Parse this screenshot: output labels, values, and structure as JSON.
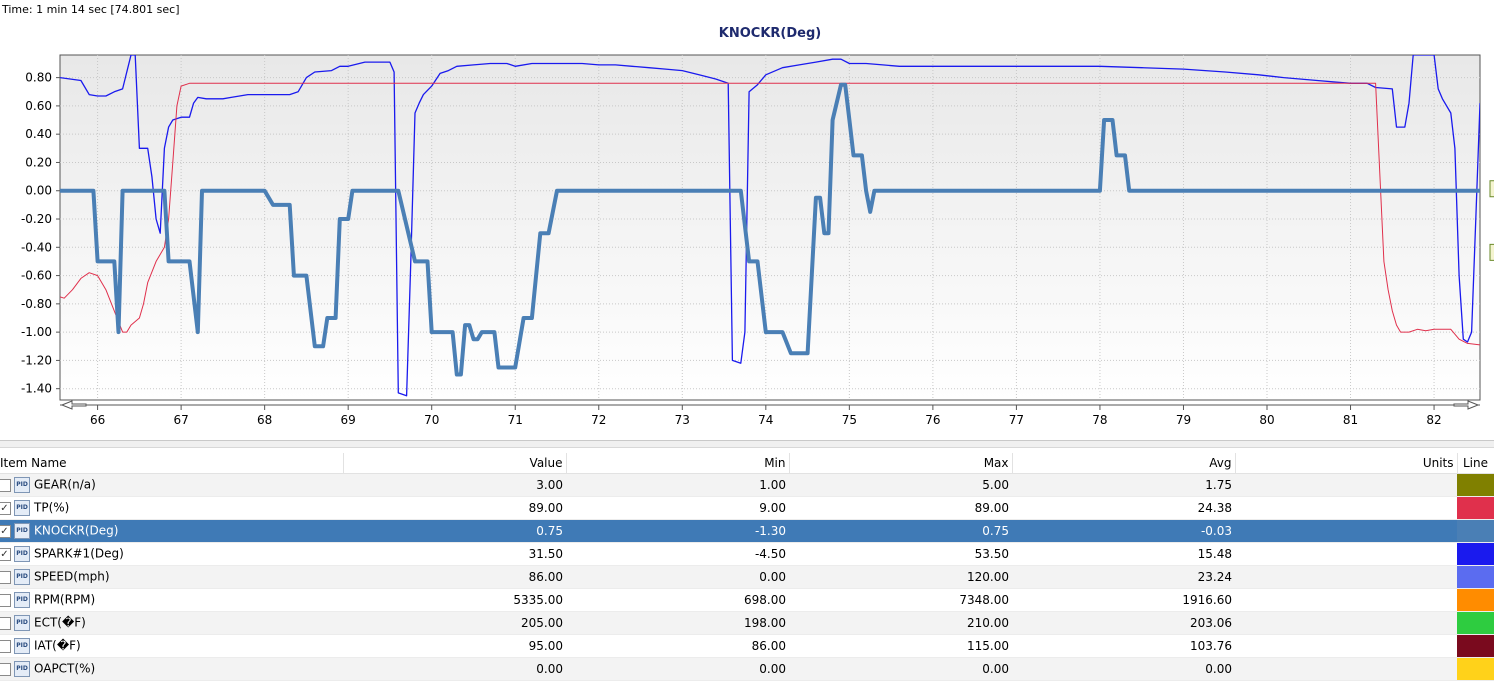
{
  "time_label": "Time: 1 min 14 sec [74.801 sec]",
  "chart": {
    "title": "KNOCKR(Deg)"
  },
  "chart_data": {
    "type": "line",
    "title": "KNOCKR(Deg)",
    "xlim": [
      65.55,
      82.55
    ],
    "ylim": [
      -1.48,
      0.96
    ],
    "yticks": [
      "0.80",
      "0.60",
      "0.40",
      "0.20",
      "0.00",
      "-0.20",
      "-0.40",
      "-0.60",
      "-0.80",
      "-1.00",
      "-1.20",
      "-1.40"
    ],
    "xticks": [
      "66",
      "67",
      "68",
      "69",
      "70",
      "71",
      "72",
      "73",
      "74",
      "75",
      "76",
      "77",
      "78",
      "79",
      "80",
      "81",
      "82"
    ],
    "grid": true,
    "series": [
      {
        "name": "SPARK#1(Deg)",
        "color": "#1a1aee",
        "width": 1.3,
        "points": [
          [
            65.55,
            0.8
          ],
          [
            65.8,
            0.78
          ],
          [
            65.9,
            0.68
          ],
          [
            66.0,
            0.67
          ],
          [
            66.1,
            0.67
          ],
          [
            66.2,
            0.7
          ],
          [
            66.3,
            0.72
          ],
          [
            66.4,
            0.96
          ],
          [
            66.45,
            0.96
          ],
          [
            66.5,
            0.3
          ],
          [
            66.6,
            0.3
          ],
          [
            66.65,
            0.1
          ],
          [
            66.7,
            -0.2
          ],
          [
            66.75,
            -0.3
          ],
          [
            66.8,
            0.3
          ],
          [
            66.85,
            0.45
          ],
          [
            66.9,
            0.5
          ],
          [
            67.0,
            0.52
          ],
          [
            67.1,
            0.52
          ],
          [
            67.15,
            0.62
          ],
          [
            67.2,
            0.66
          ],
          [
            67.3,
            0.65
          ],
          [
            67.5,
            0.65
          ],
          [
            67.6,
            0.66
          ],
          [
            67.8,
            0.68
          ],
          [
            68.0,
            0.68
          ],
          [
            68.3,
            0.68
          ],
          [
            68.4,
            0.7
          ],
          [
            68.5,
            0.8
          ],
          [
            68.6,
            0.84
          ],
          [
            68.8,
            0.85
          ],
          [
            68.9,
            0.88
          ],
          [
            69.0,
            0.88
          ],
          [
            69.2,
            0.91
          ],
          [
            69.5,
            0.91
          ],
          [
            69.55,
            0.84
          ],
          [
            69.6,
            -1.43
          ],
          [
            69.7,
            -1.45
          ],
          [
            69.75,
            -0.5
          ],
          [
            69.8,
            0.55
          ],
          [
            69.85,
            0.62
          ],
          [
            69.9,
            0.68
          ],
          [
            70.0,
            0.74
          ],
          [
            70.1,
            0.83
          ],
          [
            70.2,
            0.85
          ],
          [
            70.3,
            0.88
          ],
          [
            70.5,
            0.89
          ],
          [
            70.7,
            0.9
          ],
          [
            70.9,
            0.9
          ],
          [
            71.0,
            0.88
          ],
          [
            71.2,
            0.9
          ],
          [
            71.4,
            0.9
          ],
          [
            71.8,
            0.9
          ],
          [
            72.0,
            0.89
          ],
          [
            72.2,
            0.89
          ],
          [
            72.4,
            0.88
          ],
          [
            72.6,
            0.87
          ],
          [
            72.8,
            0.86
          ],
          [
            73.0,
            0.85
          ],
          [
            73.2,
            0.82
          ],
          [
            73.4,
            0.79
          ],
          [
            73.55,
            0.76
          ],
          [
            73.6,
            -1.2
          ],
          [
            73.7,
            -1.22
          ],
          [
            73.75,
            -1.0
          ],
          [
            73.8,
            0.7
          ],
          [
            73.9,
            0.75
          ],
          [
            74.0,
            0.82
          ],
          [
            74.2,
            0.87
          ],
          [
            74.4,
            0.89
          ],
          [
            74.6,
            0.91
          ],
          [
            74.8,
            0.93
          ],
          [
            74.9,
            0.93
          ],
          [
            75.0,
            0.9
          ],
          [
            75.2,
            0.9
          ],
          [
            75.4,
            0.89
          ],
          [
            75.6,
            0.88
          ],
          [
            76.0,
            0.88
          ],
          [
            77.0,
            0.88
          ],
          [
            78.0,
            0.88
          ],
          [
            78.5,
            0.87
          ],
          [
            79.0,
            0.86
          ],
          [
            79.5,
            0.84
          ],
          [
            79.9,
            0.82
          ],
          [
            80.2,
            0.8
          ],
          [
            80.6,
            0.78
          ],
          [
            81.0,
            0.76
          ],
          [
            81.2,
            0.76
          ],
          [
            81.3,
            0.73
          ],
          [
            81.5,
            0.72
          ],
          [
            81.55,
            0.45
          ],
          [
            81.65,
            0.45
          ],
          [
            81.7,
            0.62
          ],
          [
            81.75,
            0.96
          ],
          [
            81.8,
            0.96
          ],
          [
            81.9,
            0.96
          ],
          [
            82.0,
            0.96
          ],
          [
            82.05,
            0.72
          ],
          [
            82.1,
            0.65
          ],
          [
            82.2,
            0.55
          ],
          [
            82.25,
            0.3
          ],
          [
            82.3,
            -0.6
          ],
          [
            82.35,
            -1.05
          ],
          [
            82.4,
            -1.07
          ],
          [
            82.45,
            -1.0
          ],
          [
            82.5,
            -0.2
          ],
          [
            82.55,
            0.62
          ]
        ]
      },
      {
        "name": "TP(%)",
        "color": "#e0304c",
        "width": 1.0,
        "points": [
          [
            65.55,
            -0.75
          ],
          [
            65.6,
            -0.76
          ],
          [
            65.7,
            -0.7
          ],
          [
            65.8,
            -0.62
          ],
          [
            65.9,
            -0.58
          ],
          [
            66.0,
            -0.6
          ],
          [
            66.1,
            -0.7
          ],
          [
            66.2,
            -0.85
          ],
          [
            66.3,
            -1.0
          ],
          [
            66.35,
            -1.0
          ],
          [
            66.4,
            -0.95
          ],
          [
            66.5,
            -0.9
          ],
          [
            66.55,
            -0.8
          ],
          [
            66.6,
            -0.65
          ],
          [
            66.7,
            -0.5
          ],
          [
            66.8,
            -0.4
          ],
          [
            66.85,
            -0.2
          ],
          [
            66.9,
            0.2
          ],
          [
            66.95,
            0.6
          ],
          [
            67.0,
            0.74
          ],
          [
            67.1,
            0.76
          ],
          [
            68.0,
            0.76
          ],
          [
            70.0,
            0.76
          ],
          [
            72.0,
            0.76
          ],
          [
            74.0,
            0.76
          ],
          [
            76.0,
            0.76
          ],
          [
            78.0,
            0.76
          ],
          [
            80.0,
            0.76
          ],
          [
            81.0,
            0.76
          ],
          [
            81.3,
            0.76
          ],
          [
            81.4,
            -0.5
          ],
          [
            81.45,
            -0.7
          ],
          [
            81.5,
            -0.85
          ],
          [
            81.55,
            -0.95
          ],
          [
            81.6,
            -1.0
          ],
          [
            81.7,
            -1.0
          ],
          [
            81.8,
            -0.98
          ],
          [
            81.9,
            -0.99
          ],
          [
            82.0,
            -0.98
          ],
          [
            82.1,
            -0.98
          ],
          [
            82.2,
            -0.98
          ],
          [
            82.3,
            -1.05
          ],
          [
            82.4,
            -1.08
          ],
          [
            82.55,
            -1.09
          ]
        ]
      },
      {
        "name": "KNOCKR(Deg)",
        "color": "#4a7fb5",
        "width": 4.0,
        "step": true,
        "points": [
          [
            65.55,
            0.0
          ],
          [
            65.95,
            0.0
          ],
          [
            66.0,
            -0.5
          ],
          [
            66.2,
            -0.5
          ],
          [
            66.25,
            -1.0
          ],
          [
            66.3,
            0.0
          ],
          [
            66.8,
            0.0
          ],
          [
            66.85,
            -0.5
          ],
          [
            67.1,
            -0.5
          ],
          [
            67.2,
            -1.0
          ],
          [
            67.25,
            0.0
          ],
          [
            68.0,
            0.0
          ],
          [
            68.1,
            -0.1
          ],
          [
            68.3,
            -0.1
          ],
          [
            68.35,
            -0.6
          ],
          [
            68.5,
            -0.6
          ],
          [
            68.6,
            -1.1
          ],
          [
            68.7,
            -1.1
          ],
          [
            68.75,
            -0.9
          ],
          [
            68.85,
            -0.9
          ],
          [
            68.9,
            -0.2
          ],
          [
            69.0,
            -0.2
          ],
          [
            69.05,
            0.0
          ],
          [
            69.6,
            0.0
          ],
          [
            69.8,
            -0.5
          ],
          [
            69.95,
            -0.5
          ],
          [
            70.0,
            -1.0
          ],
          [
            70.25,
            -1.0
          ],
          [
            70.3,
            -1.3
          ],
          [
            70.35,
            -1.3
          ],
          [
            70.4,
            -0.95
          ],
          [
            70.45,
            -0.95
          ],
          [
            70.5,
            -1.05
          ],
          [
            70.55,
            -1.05
          ],
          [
            70.6,
            -1.0
          ],
          [
            70.75,
            -1.0
          ],
          [
            70.8,
            -1.25
          ],
          [
            71.0,
            -1.25
          ],
          [
            71.1,
            -0.9
          ],
          [
            71.2,
            -0.9
          ],
          [
            71.3,
            -0.3
          ],
          [
            71.4,
            -0.3
          ],
          [
            71.5,
            0.0
          ],
          [
            73.7,
            0.0
          ],
          [
            73.8,
            -0.5
          ],
          [
            73.9,
            -0.5
          ],
          [
            74.0,
            -1.0
          ],
          [
            74.2,
            -1.0
          ],
          [
            74.3,
            -1.15
          ],
          [
            74.5,
            -1.15
          ],
          [
            74.6,
            -0.05
          ],
          [
            74.65,
            -0.05
          ],
          [
            74.7,
            -0.3
          ],
          [
            74.75,
            -0.3
          ],
          [
            74.8,
            0.5
          ],
          [
            74.9,
            0.75
          ],
          [
            74.95,
            0.75
          ],
          [
            75.0,
            0.5
          ],
          [
            75.05,
            0.25
          ],
          [
            75.15,
            0.25
          ],
          [
            75.2,
            0.0
          ],
          [
            75.25,
            -0.15
          ],
          [
            75.3,
            0.0
          ],
          [
            78.0,
            0.0
          ],
          [
            78.05,
            0.5
          ],
          [
            78.15,
            0.5
          ],
          [
            78.2,
            0.25
          ],
          [
            78.3,
            0.25
          ],
          [
            78.35,
            0.0
          ],
          [
            82.55,
            0.0
          ]
        ]
      }
    ]
  },
  "table": {
    "headers": {
      "name": "Item Name",
      "value": "Value",
      "min": "Min",
      "max": "Max",
      "avg": "Avg",
      "units": "Units",
      "line": "Line"
    },
    "rows": [
      {
        "name": "GEAR(n/a)",
        "value": "3.00",
        "min": "1.00",
        "max": "5.00",
        "avg": "1.75",
        "checked": false,
        "color": "#808000"
      },
      {
        "name": "TP(%)",
        "value": "89.00",
        "min": "9.00",
        "max": "89.00",
        "avg": "24.38",
        "checked": true,
        "color": "#e0304c"
      },
      {
        "name": "KNOCKR(Deg)",
        "value": "0.75",
        "min": "-1.30",
        "max": "0.75",
        "avg": "-0.03",
        "checked": true,
        "color": "#4a7fb5",
        "selected": true
      },
      {
        "name": "SPARK#1(Deg)",
        "value": "31.50",
        "min": "-4.50",
        "max": "53.50",
        "avg": "15.48",
        "checked": true,
        "color": "#1a1aee"
      },
      {
        "name": "SPEED(mph)",
        "value": "86.00",
        "min": "0.00",
        "max": "120.00",
        "avg": "23.24",
        "checked": false,
        "color": "#5b6cf0"
      },
      {
        "name": "RPM(RPM)",
        "value": "5335.00",
        "min": "698.00",
        "max": "7348.00",
        "avg": "1916.60",
        "checked": false,
        "color": "#ff8c00"
      },
      {
        "name": "ECT(�F)",
        "value": "205.00",
        "min": "198.00",
        "max": "210.00",
        "avg": "203.06",
        "checked": false,
        "color": "#2ecc40"
      },
      {
        "name": "IAT(�F)",
        "value": "95.00",
        "min": "86.00",
        "max": "115.00",
        "avg": "103.76",
        "checked": false,
        "color": "#7a0a1e"
      },
      {
        "name": "OAPCT(%)",
        "value": "0.00",
        "min": "0.00",
        "max": "0.00",
        "avg": "0.00",
        "checked": false,
        "color": "#ffd21a"
      }
    ]
  }
}
